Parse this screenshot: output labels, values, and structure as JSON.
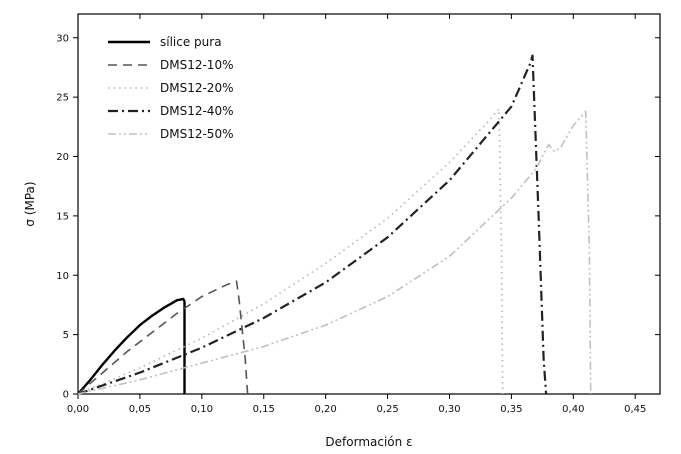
{
  "chart_data": {
    "type": "line",
    "title": "",
    "xlabel": "Deformación ε",
    "ylabel": "σ (MPa)",
    "xlim": [
      0,
      0.47
    ],
    "ylim": [
      0,
      32
    ],
    "xticks": [
      0.0,
      0.05,
      0.1,
      0.15,
      0.2,
      0.25,
      0.3,
      0.35,
      0.4,
      0.45
    ],
    "xtick_labels": [
      "0,00",
      "0,05",
      "0,10",
      "0,15",
      "0,20",
      "0,25",
      "0,30",
      "0,35",
      "0,40",
      "0,45"
    ],
    "yticks": [
      0,
      5,
      10,
      15,
      20,
      25,
      30
    ],
    "ytick_labels": [
      "0",
      "5",
      "10",
      "15",
      "20",
      "25",
      "30"
    ],
    "legend_position": "top-left",
    "grid": false,
    "series": [
      {
        "name": "sílice pura",
        "style": "solid",
        "color": "#000000",
        "width": 2.4,
        "x": [
          0.0,
          0.01,
          0.02,
          0.03,
          0.04,
          0.05,
          0.06,
          0.07,
          0.08,
          0.085,
          0.086,
          0.086
        ],
        "y": [
          0.0,
          1.2,
          2.5,
          3.7,
          4.8,
          5.8,
          6.6,
          7.3,
          7.9,
          8.0,
          7.8,
          0.0
        ]
      },
      {
        "name": "DMS12-10%",
        "style": "dash",
        "color": "#555555",
        "width": 1.6,
        "x": [
          0.0,
          0.02,
          0.04,
          0.06,
          0.08,
          0.1,
          0.12,
          0.128,
          0.13,
          0.135,
          0.137
        ],
        "y": [
          0.0,
          1.8,
          3.6,
          5.2,
          6.8,
          8.2,
          9.2,
          9.5,
          8.0,
          3.0,
          0.0
        ]
      },
      {
        "name": "DMS12-20%",
        "style": "dot",
        "color": "#b5b5b5",
        "width": 1.6,
        "x": [
          0.0,
          0.05,
          0.1,
          0.15,
          0.2,
          0.25,
          0.3,
          0.33,
          0.34,
          0.342,
          0.343
        ],
        "y": [
          0.0,
          2.2,
          4.7,
          7.6,
          11.0,
          14.8,
          19.5,
          22.8,
          24.0,
          12.0,
          0.0
        ]
      },
      {
        "name": "DMS12-40%",
        "style": "dashdot",
        "color": "#222222",
        "width": 2.2,
        "x": [
          0.0,
          0.05,
          0.1,
          0.15,
          0.2,
          0.25,
          0.3,
          0.35,
          0.365,
          0.367,
          0.372,
          0.376,
          0.378
        ],
        "y": [
          0.0,
          1.8,
          3.9,
          6.4,
          9.4,
          13.2,
          18.0,
          24.2,
          27.8,
          28.5,
          15.0,
          3.0,
          0.0
        ]
      },
      {
        "name": "DMS12-50%",
        "style": "dashdotdot",
        "color": "#c0c0c0",
        "width": 1.6,
        "x": [
          0.0,
          0.05,
          0.1,
          0.15,
          0.2,
          0.25,
          0.3,
          0.35,
          0.37,
          0.38,
          0.385,
          0.39,
          0.4,
          0.41,
          0.413,
          0.414
        ],
        "y": [
          0.0,
          1.2,
          2.6,
          4.0,
          5.8,
          8.2,
          11.6,
          16.5,
          19.0,
          21.0,
          20.4,
          20.8,
          22.6,
          23.8,
          12.0,
          0.0
        ]
      }
    ]
  }
}
